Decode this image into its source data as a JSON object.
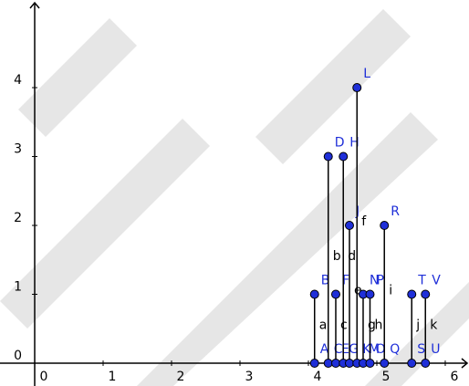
{
  "chart_data": {
    "type": "stem",
    "xlim": [
      -0.507,
      6.347
    ],
    "ylim": [
      -0.331,
      5.272
    ],
    "xticks": [
      0,
      1,
      2,
      3,
      4,
      5,
      6
    ],
    "yticks": [
      0,
      1,
      2,
      3,
      4
    ],
    "point_color": "#1f2fd8",
    "label_color": "#1f2fd8",
    "segment_color": "#000000",
    "stems": [
      {
        "segment": "a",
        "base": "A",
        "top": "B",
        "x": 4.09,
        "y": 1
      },
      {
        "segment": "b",
        "base": "C",
        "top": "D",
        "x": 4.29,
        "y": 3
      },
      {
        "segment": "c",
        "base": "E",
        "top": "F",
        "x": 4.4,
        "y": 1
      },
      {
        "segment": "d",
        "base": "G",
        "top": "H",
        "x": 4.51,
        "y": 3
      },
      {
        "segment": "e",
        "base": "I",
        "top": "J",
        "x": 4.6,
        "y": 2
      },
      {
        "segment": "f",
        "base": "K",
        "top": "L",
        "x": 4.71,
        "y": 4
      },
      {
        "segment": "g",
        "base": "M",
        "top": "N",
        "x": 4.8,
        "y": 1
      },
      {
        "segment": "h",
        "base": "O",
        "top": "P",
        "x": 4.9,
        "y": 1
      },
      {
        "segment": "i",
        "base": "Q",
        "top": "R",
        "x": 5.11,
        "y": 2
      },
      {
        "segment": "j",
        "base": "S",
        "top": "T",
        "x": 5.51,
        "y": 1
      },
      {
        "segment": "k",
        "base": "U",
        "top": "V",
        "x": 5.71,
        "y": 1
      }
    ]
  }
}
